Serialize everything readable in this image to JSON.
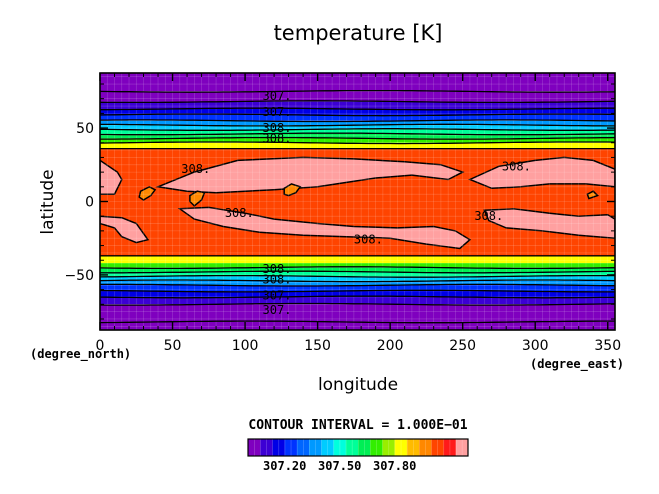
{
  "chart_data": {
    "type": "heatmap",
    "title": "temperature [K]",
    "xlabel": "longitude",
    "ylabel": "latitude",
    "x_unit": "(degree_east)",
    "y_unit": "(degree_north)",
    "xlim": [
      0,
      355
    ],
    "ylim": [
      -87.5,
      87.5
    ],
    "x_ticks": [
      "0",
      "50",
      "100",
      "150",
      "200",
      "250",
      "300",
      "350"
    ],
    "y_ticks": [
      "50",
      "0",
      "−50"
    ],
    "contour_interval_text": "CONTOUR INTERVAL = 1.000E−01",
    "colorbar_tick_labels": [
      "307.20",
      "307.50",
      "307.80"
    ],
    "colorbar_range": [
      307.0,
      308.2
    ],
    "colorbar_colors": [
      "#7f00bf",
      "#3c00d4",
      "#0000e6",
      "#0033ff",
      "#0066ff",
      "#0099ff",
      "#00ccff",
      "#00ffdd",
      "#00ff99",
      "#00ee55",
      "#33ee00",
      "#99ee00",
      "#ffff00",
      "#ffbb00",
      "#ff8800",
      "#ff4400",
      "#ff1a1a",
      "#ffa0a0"
    ],
    "latitude_bands": [
      {
        "lat_range": [
          75,
          87.5
        ],
        "value": 306.4
      },
      {
        "lat_range": [
          68,
          75
        ],
        "value": 306.9
      },
      {
        "lat_range": [
          63,
          68
        ],
        "value": 307.0
      },
      {
        "lat_range": [
          59,
          63
        ],
        "value": 307.1
      },
      {
        "lat_range": [
          55,
          59
        ],
        "value": 307.2
      },
      {
        "lat_range": [
          52,
          55
        ],
        "value": 307.3
      },
      {
        "lat_range": [
          49,
          52
        ],
        "value": 307.4
      },
      {
        "lat_range": [
          46,
          49
        ],
        "value": 307.5
      },
      {
        "lat_range": [
          43,
          46
        ],
        "value": 307.6
      },
      {
        "lat_range": [
          40,
          43
        ],
        "value": 307.7
      },
      {
        "lat_range": [
          36,
          40
        ],
        "value": 307.8
      },
      {
        "lat_range": [
          -37,
          36
        ],
        "value": 308.05
      },
      {
        "lat_range": [
          -42,
          -37
        ],
        "value": 307.8
      },
      {
        "lat_range": [
          -45,
          -42
        ],
        "value": 307.7
      },
      {
        "lat_range": [
          -48,
          -45
        ],
        "value": 307.6
      },
      {
        "lat_range": [
          -51,
          -48
        ],
        "value": 307.5
      },
      {
        "lat_range": [
          -54,
          -51
        ],
        "value": 307.4
      },
      {
        "lat_range": [
          -57,
          -54
        ],
        "value": 307.3
      },
      {
        "lat_range": [
          -61,
          -57
        ],
        "value": 307.2
      },
      {
        "lat_range": [
          -65,
          -61
        ],
        "value": 307.1
      },
      {
        "lat_range": [
          -70,
          -65
        ],
        "value": 307.0
      },
      {
        "lat_range": [
          -82,
          -70
        ],
        "value": 306.9
      },
      {
        "lat_range": [
          -87.5,
          -82
        ],
        "value": 306.4
      }
    ],
    "warm_regions_308_1": [
      [
        [
          0,
          28
        ],
        [
          12,
          20
        ],
        [
          15,
          15
        ],
        [
          10,
          5
        ],
        [
          0,
          5
        ]
      ],
      [
        [
          40,
          10
        ],
        [
          65,
          20
        ],
        [
          95,
          28
        ],
        [
          140,
          30
        ],
        [
          175,
          29
        ],
        [
          210,
          27
        ],
        [
          235,
          25
        ],
        [
          250,
          20
        ],
        [
          240,
          15
        ],
        [
          215,
          18
        ],
        [
          190,
          16
        ],
        [
          170,
          13
        ],
        [
          150,
          10
        ],
        [
          120,
          8
        ],
        [
          100,
          7
        ],
        [
          80,
          6
        ],
        [
          60,
          7
        ]
      ],
      [
        [
          255,
          15
        ],
        [
          275,
          24
        ],
        [
          300,
          28
        ],
        [
          320,
          30
        ],
        [
          340,
          28
        ],
        [
          355,
          22
        ],
        [
          355,
          10
        ],
        [
          335,
          12
        ],
        [
          310,
          12
        ],
        [
          290,
          10
        ],
        [
          270,
          9
        ]
      ],
      [
        [
          0,
          -15
        ],
        [
          10,
          -18
        ],
        [
          15,
          -24
        ],
        [
          25,
          -28
        ],
        [
          33,
          -26
        ],
        [
          25,
          -15
        ],
        [
          15,
          -11
        ],
        [
          0,
          -10
        ]
      ],
      [
        [
          55,
          -5
        ],
        [
          75,
          -4
        ],
        [
          100,
          -8
        ],
        [
          120,
          -12
        ],
        [
          150,
          -15
        ],
        [
          175,
          -17
        ],
        [
          205,
          -18
        ],
        [
          230,
          -17
        ],
        [
          245,
          -20
        ],
        [
          255,
          -26
        ],
        [
          248,
          -32
        ],
        [
          225,
          -29
        ],
        [
          200,
          -25
        ],
        [
          170,
          -24
        ],
        [
          140,
          -23
        ],
        [
          110,
          -21
        ],
        [
          85,
          -17
        ],
        [
          65,
          -12
        ]
      ],
      [
        [
          265,
          -6
        ],
        [
          285,
          -5
        ],
        [
          310,
          -8
        ],
        [
          330,
          -10
        ],
        [
          350,
          -9
        ],
        [
          355,
          -12
        ],
        [
          355,
          -25
        ],
        [
          330,
          -23
        ],
        [
          305,
          -20
        ],
        [
          280,
          -18
        ],
        [
          268,
          -13
        ]
      ]
    ],
    "cool_islands_308_0": [
      [
        [
          30,
          1
        ],
        [
          35,
          4
        ],
        [
          38,
          8
        ],
        [
          34,
          10
        ],
        [
          28,
          7
        ],
        [
          27,
          3
        ]
      ],
      [
        [
          65,
          -3
        ],
        [
          70,
          1
        ],
        [
          72,
          6
        ],
        [
          67,
          7
        ],
        [
          62,
          4
        ],
        [
          62,
          0
        ]
      ],
      [
        [
          130,
          4
        ],
        [
          135,
          6
        ],
        [
          138,
          10
        ],
        [
          132,
          12
        ],
        [
          127,
          9
        ],
        [
          127,
          5
        ]
      ],
      [
        [
          337,
          2
        ],
        [
          340,
          3
        ],
        [
          343,
          4
        ],
        [
          340,
          7
        ],
        [
          336,
          5
        ]
      ]
    ],
    "contour_labels": [
      {
        "text": "307.",
        "lon": 122,
        "lat": 72
      },
      {
        "text": "307.",
        "lon": 122,
        "lat": 61
      },
      {
        "text": "308.",
        "lon": 122,
        "lat": 50
      },
      {
        "text": "308.",
        "lon": 122,
        "lat": 43
      },
      {
        "text": "308.",
        "lon": 66,
        "lat": 22
      },
      {
        "text": "308.",
        "lon": 96,
        "lat": -8
      },
      {
        "text": "308.",
        "lon": 185,
        "lat": -26
      },
      {
        "text": "308.",
        "lon": 287,
        "lat": 24
      },
      {
        "text": "308.",
        "lon": 268,
        "lat": -10
      },
      {
        "text": "308.",
        "lon": 122,
        "lat": -46
      },
      {
        "text": "308.",
        "lon": 122,
        "lat": -53
      },
      {
        "text": "307.",
        "lon": 122,
        "lat": -64
      },
      {
        "text": "307.",
        "lon": 122,
        "lat": -74
      }
    ]
  }
}
